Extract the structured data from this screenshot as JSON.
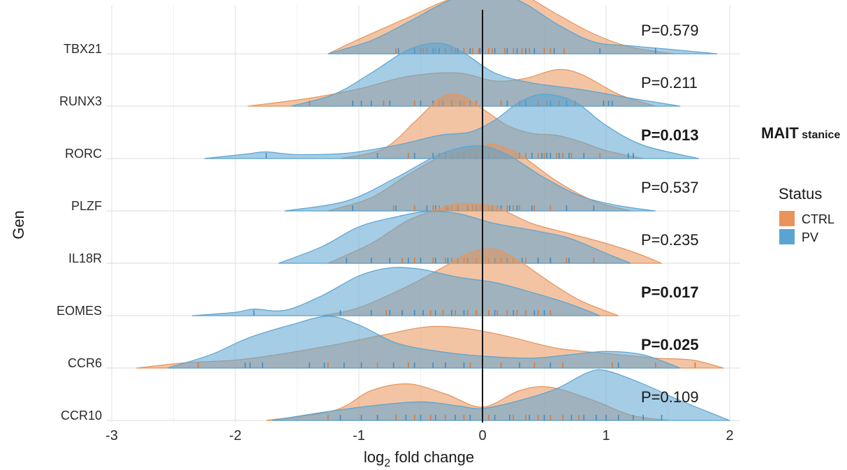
{
  "chart_data": {
    "type": "ridgeline",
    "xlabel": "log2 fold change",
    "xlabel_main": "log",
    "xlabel_sub": "2",
    "xlabel_rest": " fold change",
    "ylabel": "Gen",
    "xlim": [
      -3,
      2
    ],
    "xticks": [
      "-3",
      "-2",
      "-1",
      "0",
      "1",
      "2"
    ],
    "xtick_values": [
      -3,
      -2,
      -1,
      0,
      1,
      2
    ],
    "reference_line_x": 0,
    "grid": true,
    "legend": {
      "title": "Status",
      "position": "right",
      "items": [
        {
          "name": "CTRL",
          "color": "#E8945A"
        },
        {
          "name": "PV",
          "color": "#5BA4D1"
        }
      ]
    },
    "side_annotation": {
      "main": "MAIT",
      "sub": " stanice"
    },
    "genes": [
      {
        "name": "TBX21",
        "p": "P=0.579",
        "bold": false,
        "ctrl": [
          [
            -1.25,
            0
          ],
          [
            -1.0,
            0.22
          ],
          [
            -0.6,
            0.55
          ],
          [
            -0.3,
            0.8
          ],
          [
            0.0,
            0.97
          ],
          [
            0.1,
            1.0
          ],
          [
            0.3,
            0.92
          ],
          [
            0.6,
            0.6
          ],
          [
            0.9,
            0.3
          ],
          [
            1.2,
            0.1
          ],
          [
            1.55,
            0
          ]
        ],
        "pv": [
          [
            -1.25,
            0
          ],
          [
            -0.9,
            0.2
          ],
          [
            -0.6,
            0.48
          ],
          [
            -0.3,
            0.78
          ],
          [
            -0.1,
            0.9
          ],
          [
            0.1,
            0.93
          ],
          [
            0.35,
            0.75
          ],
          [
            0.6,
            0.45
          ],
          [
            0.9,
            0.18
          ],
          [
            1.2,
            0.12
          ],
          [
            1.5,
            0.07
          ],
          [
            1.9,
            0
          ]
        ],
        "ctrl_ticks": [
          -0.7,
          -0.5,
          -0.48,
          -0.45,
          -0.38,
          -0.3,
          -0.25,
          -0.22,
          -0.15,
          -0.08,
          -0.03,
          0.05,
          0.08,
          0.18,
          0.25,
          0.32,
          0.38,
          0.5,
          0.55,
          0.66
        ],
        "pv_ticks": [
          -0.68,
          -0.55,
          -0.4,
          -0.35,
          -0.2,
          -0.1,
          -0.02,
          0.0,
          0.1,
          0.2,
          0.28,
          0.35,
          0.42,
          0.58,
          0.95,
          1.4
        ]
      },
      {
        "name": "RUNX3",
        "p": "P=0.211",
        "bold": false,
        "ctrl": [
          [
            -1.9,
            0
          ],
          [
            -1.4,
            0.12
          ],
          [
            -1.0,
            0.26
          ],
          [
            -0.6,
            0.45
          ],
          [
            -0.2,
            0.5
          ],
          [
            0.1,
            0.38
          ],
          [
            0.35,
            0.42
          ],
          [
            0.6,
            0.55
          ],
          [
            0.8,
            0.48
          ],
          [
            1.1,
            0.18
          ],
          [
            1.4,
            0
          ]
        ],
        "pv": [
          [
            -1.55,
            0
          ],
          [
            -1.2,
            0.18
          ],
          [
            -0.9,
            0.5
          ],
          [
            -0.6,
            0.85
          ],
          [
            -0.35,
            0.95
          ],
          [
            -0.15,
            0.8
          ],
          [
            0.1,
            0.5
          ],
          [
            0.4,
            0.35
          ],
          [
            0.8,
            0.25
          ],
          [
            1.2,
            0.12
          ],
          [
            1.6,
            0
          ]
        ],
        "ctrl_ticks": [
          -1.4,
          -1.05,
          -0.8,
          -0.55,
          -0.35,
          -0.25,
          -0.15,
          -0.05,
          0.15,
          0.3,
          0.45,
          0.52,
          0.62,
          0.68,
          0.75
        ],
        "pv_ticks": [
          -1.05,
          -0.98,
          -0.9,
          -0.75,
          -0.5,
          -0.4,
          -0.32,
          -0.25,
          -0.18,
          -0.1,
          0.0,
          0.2,
          0.35,
          0.55,
          0.68,
          0.98,
          1.02,
          1.05
        ]
      },
      {
        "name": "RORC",
        "p": "P=0.013",
        "bold": true,
        "ctrl": [
          [
            -1.15,
            0
          ],
          [
            -0.8,
            0.15
          ],
          [
            -0.55,
            0.55
          ],
          [
            -0.35,
            0.9
          ],
          [
            -0.2,
            0.97
          ],
          [
            0.0,
            0.75
          ],
          [
            0.2,
            0.5
          ],
          [
            0.4,
            0.38
          ],
          [
            0.6,
            0.35
          ],
          [
            0.8,
            0.25
          ],
          [
            1.0,
            0.12
          ],
          [
            1.3,
            0
          ]
        ],
        "pv": [
          [
            -2.25,
            0
          ],
          [
            -1.9,
            0.07
          ],
          [
            -1.75,
            0.1
          ],
          [
            -1.5,
            0.06
          ],
          [
            -1.1,
            0.08
          ],
          [
            -0.7,
            0.2
          ],
          [
            -0.35,
            0.35
          ],
          [
            -0.1,
            0.4
          ],
          [
            0.1,
            0.58
          ],
          [
            0.3,
            0.85
          ],
          [
            0.5,
            0.97
          ],
          [
            0.75,
            0.85
          ],
          [
            1.0,
            0.5
          ],
          [
            1.3,
            0.2
          ],
          [
            1.75,
            0
          ]
        ],
        "ctrl_ticks": [
          -0.6,
          -0.35,
          -0.3,
          -0.25,
          -0.2,
          -0.15,
          -0.1,
          -0.05,
          0.1,
          0.3,
          0.35,
          0.4,
          0.45,
          0.5,
          0.6,
          0.65,
          0.72,
          0.95
        ],
        "pv_ticks": [
          -1.75,
          -0.85,
          -0.55,
          -0.4,
          -0.3,
          0.05,
          0.3,
          0.4,
          0.48,
          0.52,
          0.55,
          0.62,
          0.7,
          0.82,
          1.18,
          1.22
        ]
      },
      {
        "name": "PLZF",
        "p": "P=0.537",
        "bold": false,
        "ctrl": [
          [
            -1.25,
            0
          ],
          [
            -0.9,
            0.2
          ],
          [
            -0.6,
            0.55
          ],
          [
            -0.3,
            0.85
          ],
          [
            0.0,
            0.98
          ],
          [
            0.1,
            1.0
          ],
          [
            0.3,
            0.85
          ],
          [
            0.6,
            0.45
          ],
          [
            0.9,
            0.15
          ],
          [
            1.2,
            0
          ]
        ],
        "pv": [
          [
            -1.6,
            0
          ],
          [
            -1.1,
            0.15
          ],
          [
            -0.7,
            0.5
          ],
          [
            -0.35,
            0.85
          ],
          [
            -0.05,
            0.98
          ],
          [
            0.2,
            0.85
          ],
          [
            0.5,
            0.5
          ],
          [
            0.8,
            0.22
          ],
          [
            1.1,
            0.08
          ],
          [
            1.4,
            0
          ]
        ],
        "ctrl_ticks": [
          -0.72,
          -0.55,
          -0.4,
          -0.35,
          -0.3,
          -0.25,
          -0.2,
          -0.12,
          -0.08,
          -0.02,
          0.05,
          0.12,
          0.2,
          0.25,
          0.3,
          0.42,
          0.55,
          0.68
        ],
        "pv_ticks": [
          -1.05,
          -0.7,
          -0.45,
          -0.38,
          -0.28,
          -0.2,
          -0.12,
          -0.05,
          0.0,
          0.08,
          0.15,
          0.22,
          0.28,
          0.4,
          0.68,
          0.9
        ]
      },
      {
        "name": "IL18R",
        "p": "P=0.235",
        "bold": false,
        "ctrl": [
          [
            -1.25,
            0
          ],
          [
            -0.9,
            0.3
          ],
          [
            -0.6,
            0.65
          ],
          [
            -0.3,
            0.85
          ],
          [
            -0.15,
            0.9
          ],
          [
            0.1,
            0.85
          ],
          [
            0.4,
            0.6
          ],
          [
            0.7,
            0.45
          ],
          [
            1.0,
            0.3
          ],
          [
            1.25,
            0.15
          ],
          [
            1.45,
            0
          ]
        ],
        "pv": [
          [
            -1.65,
            0
          ],
          [
            -1.3,
            0.25
          ],
          [
            -1.0,
            0.55
          ],
          [
            -0.7,
            0.7
          ],
          [
            -0.45,
            0.78
          ],
          [
            -0.2,
            0.75
          ],
          [
            0.1,
            0.6
          ],
          [
            0.4,
            0.5
          ],
          [
            0.7,
            0.38
          ],
          [
            1.0,
            0.15
          ],
          [
            1.2,
            0
          ]
        ],
        "ctrl_ticks": [
          -0.65,
          -0.55,
          -0.4,
          -0.3,
          -0.25,
          -0.15,
          -0.05,
          0.05,
          0.15,
          0.25,
          0.35,
          0.45,
          0.55,
          0.68,
          0.9
        ],
        "pv_ticks": [
          -1.1,
          -0.9,
          -0.75,
          -0.6,
          -0.5,
          -0.38,
          -0.28,
          -0.2,
          -0.12,
          0.0,
          0.1,
          0.2,
          0.32,
          0.45,
          0.55,
          0.7
        ]
      },
      {
        "name": "EOMES",
        "p": "P=0.017",
        "bold": true,
        "ctrl": [
          [
            -1.3,
            0
          ],
          [
            -1.0,
            0.12
          ],
          [
            -0.6,
            0.45
          ],
          [
            -0.3,
            0.75
          ],
          [
            -0.1,
            0.95
          ],
          [
            0.1,
            1.0
          ],
          [
            0.3,
            0.82
          ],
          [
            0.55,
            0.5
          ],
          [
            0.8,
            0.22
          ],
          [
            1.1,
            0
          ]
        ],
        "pv": [
          [
            -2.35,
            0
          ],
          [
            -2.0,
            0.05
          ],
          [
            -1.85,
            0.1
          ],
          [
            -1.6,
            0.08
          ],
          [
            -1.3,
            0.3
          ],
          [
            -1.0,
            0.6
          ],
          [
            -0.75,
            0.72
          ],
          [
            -0.5,
            0.7
          ],
          [
            -0.2,
            0.58
          ],
          [
            0.1,
            0.5
          ],
          [
            0.4,
            0.35
          ],
          [
            0.7,
            0.18
          ],
          [
            0.95,
            0
          ]
        ],
        "ctrl_ticks": [
          -0.78,
          -0.65,
          -0.55,
          -0.42,
          -0.32,
          -0.22,
          -0.12,
          -0.05,
          0.05,
          0.12,
          0.2,
          0.28,
          0.35,
          0.45,
          0.55
        ],
        "pv_ticks": [
          -1.85,
          -1.15,
          -0.9,
          -0.75,
          -0.65,
          -0.55,
          -0.48,
          -0.38,
          -0.25,
          -0.15,
          0.0,
          0.1,
          0.25,
          0.42,
          0.5
        ]
      },
      {
        "name": "CCR6",
        "p": "P=0.025",
        "bold": true,
        "ctrl": [
          [
            -2.8,
            0
          ],
          [
            -2.4,
            0.08
          ],
          [
            -2.0,
            0.12
          ],
          [
            -1.6,
            0.22
          ],
          [
            -1.2,
            0.35
          ],
          [
            -0.8,
            0.5
          ],
          [
            -0.45,
            0.62
          ],
          [
            -0.15,
            0.6
          ],
          [
            0.2,
            0.48
          ],
          [
            0.6,
            0.3
          ],
          [
            1.0,
            0.22
          ],
          [
            1.4,
            0.15
          ],
          [
            1.7,
            0.12
          ],
          [
            1.95,
            0
          ]
        ],
        "pv": [
          [
            -2.55,
            0
          ],
          [
            -2.2,
            0.2
          ],
          [
            -1.9,
            0.45
          ],
          [
            -1.55,
            0.65
          ],
          [
            -1.25,
            0.78
          ],
          [
            -1.0,
            0.65
          ],
          [
            -0.7,
            0.38
          ],
          [
            -0.35,
            0.25
          ],
          [
            0.0,
            0.18
          ],
          [
            0.4,
            0.15
          ],
          [
            0.7,
            0.2
          ],
          [
            1.0,
            0.25
          ],
          [
            1.3,
            0.2
          ],
          [
            1.6,
            0
          ]
        ],
        "ctrl_ticks": [
          -2.3,
          -1.25,
          -0.85,
          -0.6,
          -0.3,
          -0.1,
          0.15,
          0.42,
          0.65,
          1.05,
          1.4,
          1.72
        ],
        "pv_ticks": [
          -1.92,
          -1.88,
          -1.78,
          -1.4,
          -1.28,
          -1.12,
          -0.98,
          -0.72,
          -0.55,
          -0.4,
          -0.3,
          -0.15,
          0.0,
          0.3,
          0.55,
          1.1
        ]
      },
      {
        "name": "CCR10",
        "p": "P=0.109",
        "bold": false,
        "ctrl": [
          [
            -1.75,
            0
          ],
          [
            -1.2,
            0.15
          ],
          [
            -0.9,
            0.45
          ],
          [
            -0.6,
            0.55
          ],
          [
            -0.3,
            0.4
          ],
          [
            0.0,
            0.2
          ],
          [
            0.3,
            0.45
          ],
          [
            0.55,
            0.5
          ],
          [
            0.9,
            0.3
          ],
          [
            1.2,
            0.08
          ],
          [
            1.5,
            0
          ]
        ],
        "pv": [
          [
            -1.7,
            0
          ],
          [
            -1.3,
            0.12
          ],
          [
            -0.9,
            0.22
          ],
          [
            -0.5,
            0.28
          ],
          [
            -0.2,
            0.22
          ],
          [
            0.0,
            0.18
          ],
          [
            0.3,
            0.3
          ],
          [
            0.6,
            0.48
          ],
          [
            0.85,
            0.72
          ],
          [
            1.0,
            0.75
          ],
          [
            1.3,
            0.55
          ],
          [
            1.6,
            0.3
          ],
          [
            2.0,
            0
          ]
        ],
        "ctrl_ticks": [
          -1.25,
          -1.15,
          -0.85,
          -0.7,
          -0.55,
          -0.42,
          -0.3,
          -0.15,
          0.05,
          0.25,
          0.35,
          0.45,
          0.55,
          0.65,
          0.78
        ],
        "pv_ticks": [
          -1.15,
          -0.98,
          -0.85,
          -0.62,
          -0.5,
          -0.38,
          -0.22,
          -0.1,
          0.1,
          0.22,
          0.38,
          0.5,
          0.72,
          0.82,
          0.92,
          1.0,
          1.1,
          1.22,
          1.3,
          1.45
        ]
      }
    ]
  }
}
